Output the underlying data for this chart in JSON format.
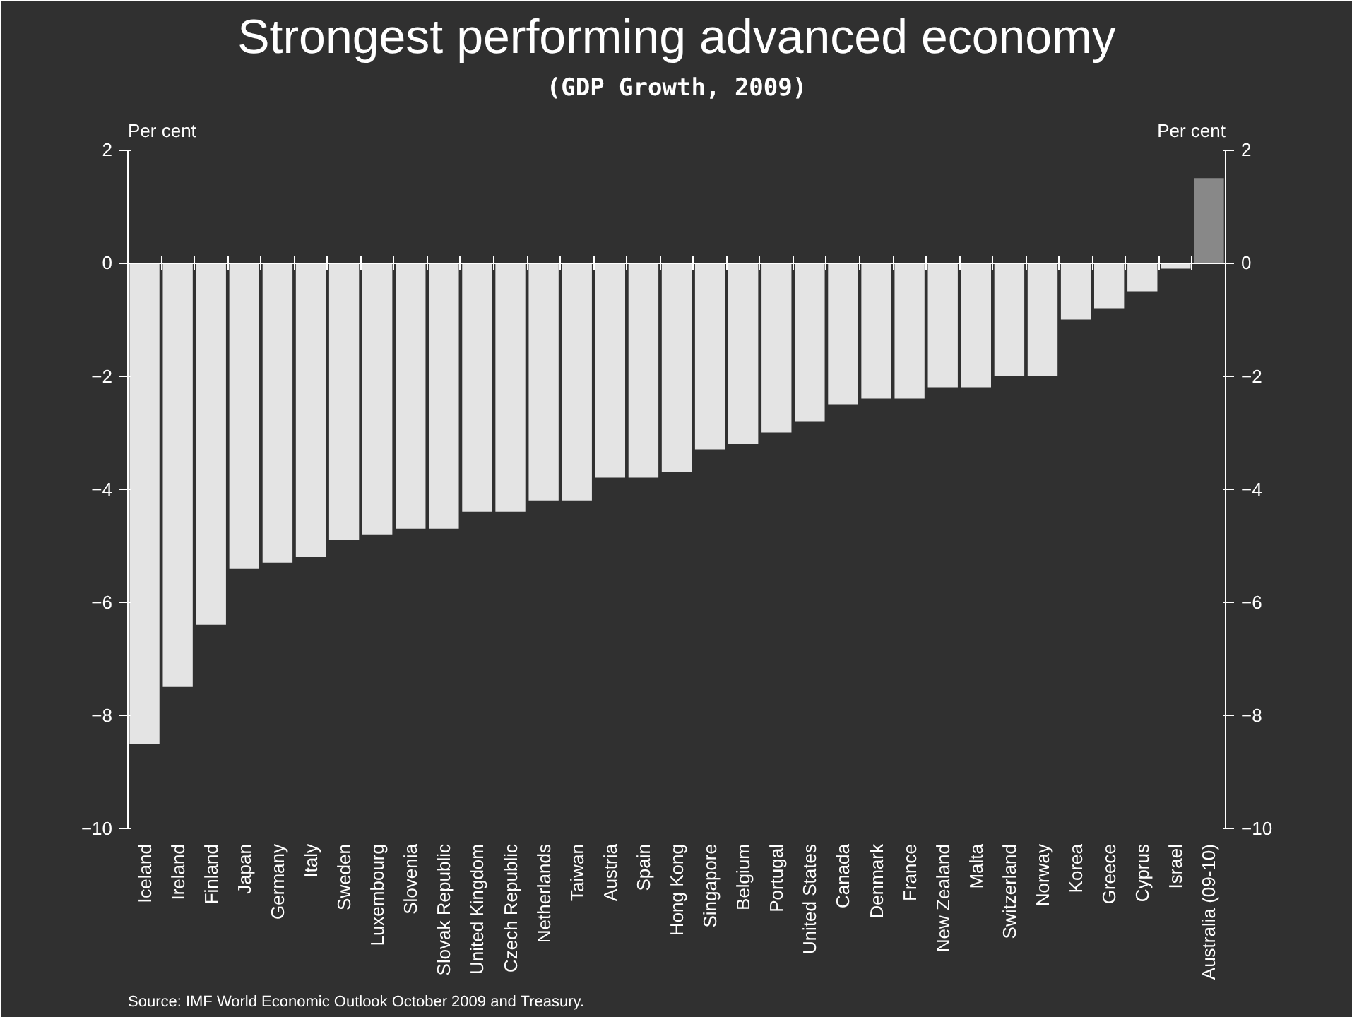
{
  "chart_data": {
    "type": "bar",
    "title": "Strongest performing advanced economy",
    "subtitle": "(GDP Growth, 2009)",
    "ylabel": "Per cent",
    "y2label": "Per cent",
    "categories": [
      "Iceland",
      "Ireland",
      "Finland",
      "Japan",
      "Germany",
      "Italy",
      "Sweden",
      "Luxembourg",
      "Slovenia",
      "Slovak Republic",
      "United Kingdom",
      "Czech Republic",
      "Netherlands",
      "Taiwan",
      "Austria",
      "Spain",
      "Hong Kong",
      "Singapore",
      "Belgium",
      "Portugal",
      "United States",
      "Canada",
      "Denmark",
      "France",
      "New Zealand",
      "Malta",
      "Switzerland",
      "Norway",
      "Korea",
      "Greece",
      "Cyprus",
      "Israel",
      "Australia (09-10)"
    ],
    "values": [
      -8.5,
      -7.5,
      -6.4,
      -5.4,
      -5.3,
      -5.2,
      -4.9,
      -4.8,
      -4.7,
      -4.7,
      -4.4,
      -4.4,
      -4.2,
      -4.2,
      -3.8,
      -3.8,
      -3.7,
      -3.3,
      -3.2,
      -3.0,
      -2.8,
      -2.5,
      -2.4,
      -2.4,
      -2.2,
      -2.2,
      -2.0,
      -2.0,
      -1.0,
      -0.8,
      -0.5,
      -0.1,
      1.5
    ],
    "colors": [
      "#e4e4e4",
      "#e4e4e4",
      "#e4e4e4",
      "#e4e4e4",
      "#e4e4e4",
      "#e4e4e4",
      "#e4e4e4",
      "#e4e4e4",
      "#e4e4e4",
      "#e4e4e4",
      "#e4e4e4",
      "#e4e4e4",
      "#e4e4e4",
      "#e4e4e4",
      "#e4e4e4",
      "#e4e4e4",
      "#e4e4e4",
      "#e4e4e4",
      "#e4e4e4",
      "#e4e4e4",
      "#e4e4e4",
      "#e4e4e4",
      "#e4e4e4",
      "#e4e4e4",
      "#e4e4e4",
      "#e4e4e4",
      "#e4e4e4",
      "#e4e4e4",
      "#e4e4e4",
      "#e4e4e4",
      "#e4e4e4",
      "#e4e4e4",
      "#888888"
    ],
    "ylim": [
      -10,
      2
    ],
    "yticks": [
      -10,
      -8,
      -6,
      -4,
      -2,
      0,
      2
    ],
    "y2lim": [
      -10,
      2
    ],
    "y2ticks": [
      -10,
      -8,
      -6,
      -4,
      -2,
      0,
      2
    ],
    "annotations": [
      "Source: IMF World Economic Outlook October 2009 and Treasury."
    ]
  }
}
